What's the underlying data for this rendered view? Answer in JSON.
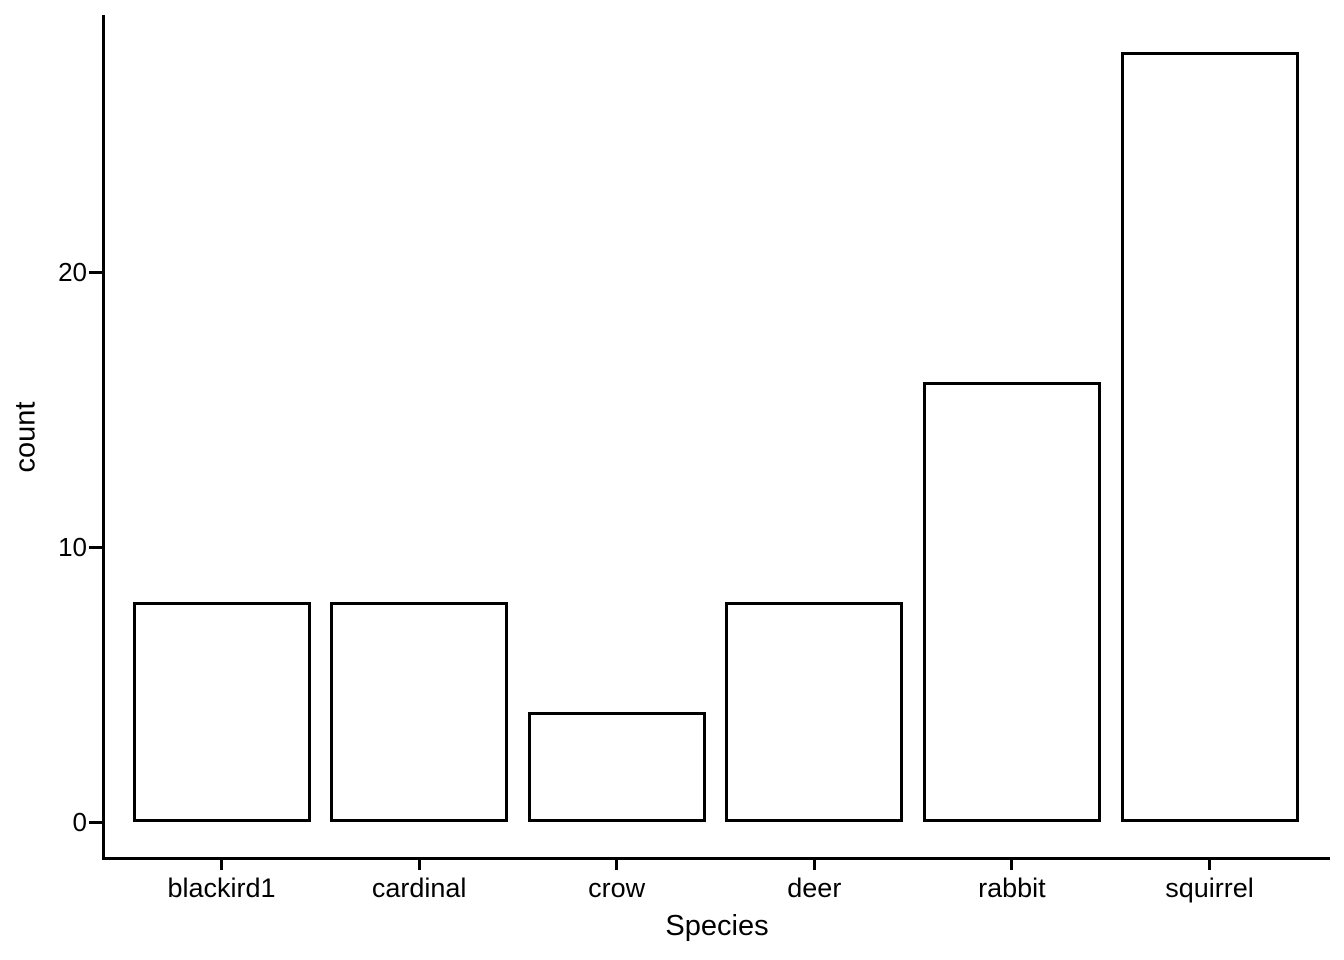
{
  "chart_data": {
    "type": "bar",
    "title": "",
    "xlabel": "Species",
    "ylabel": "count",
    "categories": [
      "blackird1",
      "cardinal",
      "crow",
      "deer",
      "rabbit",
      "squirrel"
    ],
    "values": [
      8,
      8,
      4,
      8,
      16,
      28
    ],
    "ylim": [
      0,
      28
    ],
    "yticks": [
      0,
      10,
      20
    ],
    "grid": false,
    "legend": "none",
    "bar_fill": "#FFFFFF",
    "bar_stroke": "#000000",
    "axis_color": "#000000",
    "text_color": "#000000",
    "background": "#FFFFFF"
  }
}
